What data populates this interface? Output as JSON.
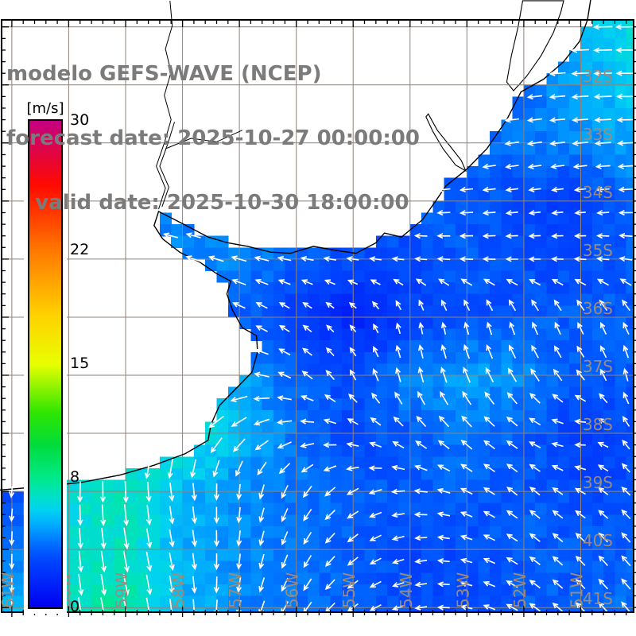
{
  "title": {
    "line1": "modelo GEFS-WAVE (NCEP)",
    "line2": "forecast date: 2025-10-27 00:00:00",
    "line3": "    valid date: 2025-10-30 18:00:00"
  },
  "colorbar": {
    "unit_label": "[m/s]",
    "min": 0,
    "max": 30,
    "tick_values": [
      30,
      22,
      15,
      8,
      0
    ],
    "stops": [
      {
        "v": 0,
        "c": "#0000f0"
      },
      {
        "v": 2,
        "c": "#0030fc"
      },
      {
        "v": 3,
        "c": "#0048ff"
      },
      {
        "v": 4,
        "c": "#0072ff"
      },
      {
        "v": 5,
        "c": "#00a8ff"
      },
      {
        "v": 6,
        "c": "#00d2f0"
      },
      {
        "v": 7,
        "c": "#00e2c0"
      },
      {
        "v": 8,
        "c": "#00e988"
      },
      {
        "v": 10,
        "c": "#00dc3c"
      },
      {
        "v": 12,
        "c": "#2ee600"
      },
      {
        "v": 15,
        "c": "#e8ff00"
      },
      {
        "v": 18,
        "c": "#ffd200"
      },
      {
        "v": 22,
        "c": "#ff7800"
      },
      {
        "v": 26,
        "c": "#ff0a00"
      },
      {
        "v": 30,
        "c": "#c30082"
      }
    ]
  },
  "map": {
    "lon_min": -61.18,
    "lon_max": -50.07,
    "lat_min": -41.08,
    "lat_max": -30.88,
    "grid_step_deg": 1.0,
    "cell_deg": 0.2,
    "arrow_step_deg": 0.4,
    "lon_tick_labels": [
      {
        "lon": -61,
        "label": "61W"
      },
      {
        "lon": -60,
        "label": "60W"
      },
      {
        "lon": -59,
        "label": "59W"
      },
      {
        "lon": -58,
        "label": "58W"
      },
      {
        "lon": -57,
        "label": "57W"
      },
      {
        "lon": -56,
        "label": "56W"
      },
      {
        "lon": -55,
        "label": "55W"
      },
      {
        "lon": -54,
        "label": "54W"
      },
      {
        "lon": -53,
        "label": "53W"
      },
      {
        "lon": -52,
        "label": "52W"
      },
      {
        "lon": -51,
        "label": "51W"
      }
    ],
    "lat_tick_labels": [
      {
        "lat": -32,
        "label": "32S"
      },
      {
        "lat": -33,
        "label": "33S"
      },
      {
        "lat": -34,
        "label": "34S"
      },
      {
        "lat": -35,
        "label": "35S"
      },
      {
        "lat": -36,
        "label": "36S"
      },
      {
        "lat": -37,
        "label": "37S"
      },
      {
        "lat": -38,
        "label": "38S"
      },
      {
        "lat": -39,
        "label": "39S"
      },
      {
        "lat": -40,
        "label": "40S"
      },
      {
        "lat": -41,
        "label": "41S"
      }
    ],
    "grid_color": "#8f837b",
    "tick_color": "#000000",
    "label_color": "#9b8b7e",
    "coast_color": "#000000",
    "land_color": "#ffffff",
    "arrow_color": "#ffffff",
    "frame_color": "#000000"
  },
  "geography": {
    "coastline": [
      [
        -50.82,
        -30.5
      ],
      [
        -50.88,
        -30.88
      ],
      [
        -51.02,
        -31.25
      ],
      [
        -51.3,
        -31.6
      ],
      [
        -51.65,
        -31.9
      ],
      [
        -52.05,
        -32.12
      ],
      [
        -52.3,
        -32.6
      ],
      [
        -52.65,
        -33.1
      ],
      [
        -53.0,
        -33.45
      ],
      [
        -53.37,
        -33.74
      ],
      [
        -53.55,
        -34.0
      ],
      [
        -53.78,
        -34.32
      ],
      [
        -54.15,
        -34.62
      ],
      [
        -54.45,
        -34.55
      ],
      [
        -54.6,
        -34.72
      ],
      [
        -54.95,
        -34.9
      ],
      [
        -55.3,
        -34.85
      ],
      [
        -55.7,
        -34.78
      ],
      [
        -56.1,
        -34.9
      ],
      [
        -56.45,
        -34.88
      ],
      [
        -56.85,
        -34.78
      ],
      [
        -57.2,
        -34.72
      ],
      [
        -57.55,
        -34.62
      ],
      [
        -57.9,
        -34.44
      ],
      [
        -58.22,
        -34.28
      ],
      [
        -58.42,
        -34.18
      ],
      [
        -58.5,
        -34.42
      ],
      [
        -58.35,
        -34.65
      ],
      [
        -58.05,
        -34.88
      ],
      [
        -57.7,
        -35.05
      ],
      [
        -57.4,
        -35.25
      ],
      [
        -57.15,
        -35.38
      ],
      [
        -57.22,
        -35.6
      ],
      [
        -57.12,
        -35.88
      ],
      [
        -56.95,
        -36.18
      ],
      [
        -56.7,
        -36.32
      ],
      [
        -56.68,
        -36.6
      ],
      [
        -56.78,
        -36.95
      ],
      [
        -57.05,
        -37.22
      ],
      [
        -57.35,
        -37.52
      ],
      [
        -57.5,
        -37.85
      ],
      [
        -57.55,
        -38.12
      ],
      [
        -57.95,
        -38.35
      ],
      [
        -58.5,
        -38.55
      ],
      [
        -59.1,
        -38.72
      ],
      [
        -59.8,
        -38.85
      ],
      [
        -60.5,
        -38.92
      ],
      [
        -61.5,
        -39.0
      ]
    ],
    "closure": [
      [
        -61.5,
        -30.5
      ]
    ],
    "lagoons": [
      [
        [
          -52.02,
          -30.55
        ],
        [
          -52.1,
          -31.0
        ],
        [
          -52.22,
          -31.5
        ],
        [
          -52.3,
          -31.95
        ],
        [
          -52.18,
          -32.1
        ],
        [
          -51.95,
          -31.85
        ],
        [
          -51.7,
          -31.5
        ],
        [
          -51.48,
          -31.1
        ],
        [
          -51.35,
          -30.75
        ],
        [
          -51.3,
          -30.55
        ]
      ],
      [
        [
          -53.68,
          -32.5
        ],
        [
          -53.52,
          -32.78
        ],
        [
          -53.3,
          -33.05
        ],
        [
          -53.1,
          -33.3
        ],
        [
          -53.02,
          -33.48
        ],
        [
          -53.2,
          -33.38
        ],
        [
          -53.42,
          -33.1
        ],
        [
          -53.6,
          -32.8
        ],
        [
          -53.72,
          -32.55
        ]
      ]
    ],
    "rivers": [
      [
        [
          -58.42,
          -34.14
        ],
        [
          -58.3,
          -33.78
        ],
        [
          -58.46,
          -33.4
        ],
        [
          -58.32,
          -33.0
        ],
        [
          -58.2,
          -32.6
        ],
        [
          -58.32,
          -32.18
        ],
        [
          -58.2,
          -31.78
        ],
        [
          -58.3,
          -31.38
        ],
        [
          -58.18,
          -30.98
        ],
        [
          -58.22,
          -30.55
        ]
      ],
      [
        [
          -58.36,
          -34.1
        ],
        [
          -58.24,
          -33.76
        ],
        [
          -58.4,
          -33.4
        ],
        [
          -58.26,
          -33.02
        ],
        [
          -58.14,
          -32.64
        ]
      ],
      [
        [
          -58.3,
          -33.1
        ],
        [
          -57.85,
          -32.92
        ],
        [
          -57.4,
          -32.98
        ],
        [
          -56.95,
          -32.78
        ]
      ]
    ]
  },
  "chart_data": {
    "type": "vector_field",
    "title": "modelo GEFS-WAVE (NCEP)",
    "units": "m/s",
    "value_range": [
      0,
      30
    ],
    "lons": [
      -61,
      -60,
      -59,
      -58,
      -57,
      -56,
      -55,
      -54,
      -53,
      -52,
      -51,
      -50
    ],
    "lats": [
      -31,
      -32,
      -33,
      -34,
      -35,
      -36,
      -37,
      -38,
      -39,
      -40,
      -41
    ],
    "speed": [
      [
        5,
        5,
        5,
        5,
        5,
        5,
        5,
        4,
        4,
        4.5,
        5.5,
        6.5
      ],
      [
        4.5,
        4.5,
        4.5,
        4.5,
        4.5,
        4.5,
        4.5,
        4,
        3.5,
        4,
        5,
        6
      ],
      [
        4,
        4,
        4,
        4,
        4,
        4,
        4,
        3.5,
        3.5,
        4,
        4.5,
        5
      ],
      [
        4,
        4,
        4,
        4,
        4,
        4,
        3.5,
        3.5,
        3.5,
        3,
        2.5,
        4
      ],
      [
        3.5,
        3.5,
        3.5,
        4.5,
        4.5,
        3.5,
        3,
        3,
        3.5,
        3,
        3,
        3.5
      ],
      [
        3,
        3,
        3.5,
        4,
        3.5,
        2.5,
        1.5,
        2.5,
        3,
        3.5,
        3.5,
        3.5
      ],
      [
        4,
        4,
        4.5,
        5,
        5,
        3.5,
        3,
        4.5,
        5,
        4.5,
        3.5,
        3.5
      ],
      [
        5,
        5.5,
        6.5,
        7,
        5.5,
        4,
        3,
        3.5,
        4,
        3.5,
        2.5,
        3
      ],
      [
        3,
        6.5,
        7,
        5.5,
        4.5,
        4,
        3.5,
        3.5,
        3.5,
        3.5,
        3,
        3
      ],
      [
        4,
        6.5,
        7,
        5,
        4.5,
        4,
        3.5,
        3,
        3,
        3.5,
        3.5,
        3.5
      ],
      [
        5.5,
        7,
        7.5,
        5.5,
        4.5,
        4,
        3.5,
        3,
        3,
        3.5,
        3.5,
        4
      ]
    ],
    "dir_to_deg": [
      [
        265,
        265,
        265,
        265,
        265,
        265,
        265,
        263,
        261,
        264,
        267,
        270
      ],
      [
        268,
        268,
        268,
        268,
        268,
        268,
        266,
        264,
        262,
        264,
        267,
        271
      ],
      [
        271,
        271,
        271,
        271,
        270,
        268,
        266,
        263,
        261,
        262,
        265,
        268
      ],
      [
        276,
        276,
        276,
        279,
        281,
        279,
        273,
        268,
        265,
        262,
        263,
        268
      ],
      [
        281,
        283,
        286,
        289,
        286,
        281,
        278,
        275,
        272,
        270,
        273,
        279
      ],
      [
        250,
        261,
        272,
        286,
        296,
        306,
        316,
        350,
        346,
        341,
        337,
        333
      ],
      [
        221,
        226,
        236,
        251,
        271,
        301,
        331,
        347,
        337,
        327,
        322,
        350
      ],
      [
        201,
        206,
        211,
        216,
        231,
        261,
        291,
        311,
        313,
        303,
        265,
        335
      ],
      [
        186,
        182,
        178,
        172,
        186,
        211,
        241,
        271,
        296,
        311,
        300,
        318
      ],
      [
        181,
        176,
        170,
        168,
        186,
        206,
        231,
        258,
        286,
        306,
        316,
        319
      ],
      [
        178,
        172,
        168,
        173,
        191,
        211,
        233,
        256,
        283,
        303,
        316,
        321
      ]
    ]
  }
}
